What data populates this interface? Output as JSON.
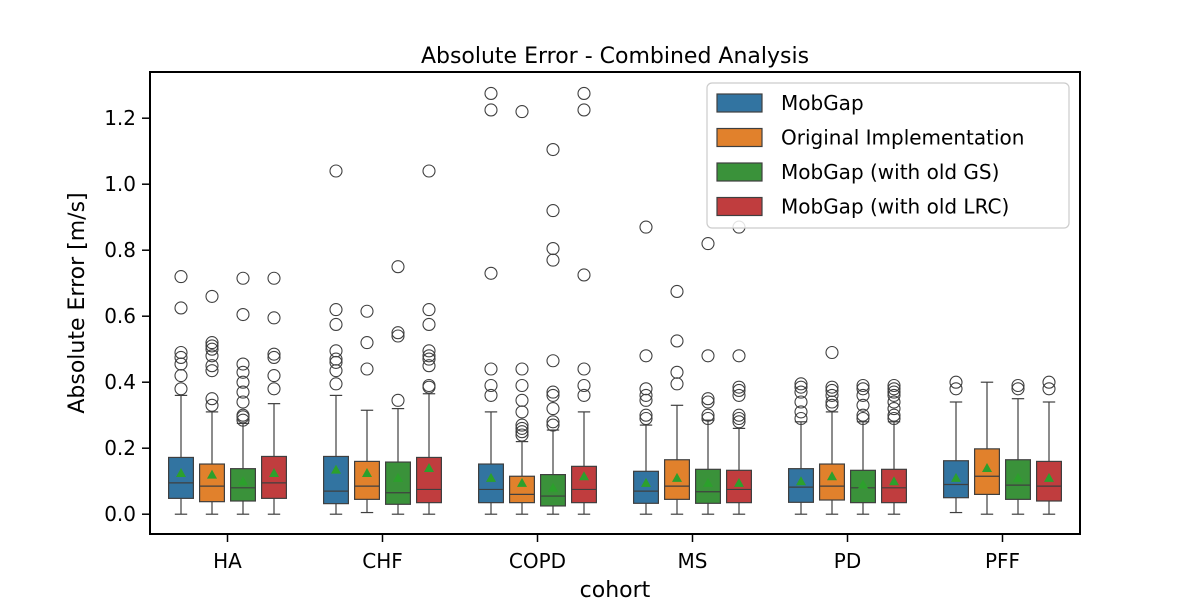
{
  "chart_data": {
    "type": "boxplot",
    "title": "Absolute Error - Combined Analysis",
    "xlabel": "cohort",
    "ylabel": "Absolute Error [m/s]",
    "ylim": [
      -0.06,
      1.34
    ],
    "yticks": [
      0.0,
      0.2,
      0.4,
      0.6,
      0.8,
      1.0,
      1.2
    ],
    "ytick_labels": [
      "0.0",
      "0.2",
      "0.4",
      "0.6",
      "0.8",
      "1.0",
      "1.2"
    ],
    "categories": [
      "HA",
      "CHF",
      "COPD",
      "MS",
      "PD",
      "PFF"
    ],
    "legend_position": "top-right",
    "grid": false,
    "mean_marker_color": "#2ca02c",
    "series": [
      {
        "name": "MobGap",
        "color": "#3274a1",
        "boxes": [
          {
            "whislo": 0.0,
            "q1": 0.048,
            "med": 0.095,
            "q3": 0.172,
            "whishi": 0.36,
            "mean": 0.125,
            "fliers": [
              0.38,
              0.42,
              0.455,
              0.475,
              0.49,
              0.625,
              0.72
            ]
          },
          {
            "whislo": 0.0,
            "q1": 0.032,
            "med": 0.07,
            "q3": 0.175,
            "whishi": 0.36,
            "mean": 0.135,
            "fliers": [
              0.395,
              0.435,
              0.46,
              0.47,
              0.495,
              0.575,
              0.62,
              1.04
            ]
          },
          {
            "whislo": 0.0,
            "q1": 0.035,
            "med": 0.075,
            "q3": 0.152,
            "whishi": 0.31,
            "mean": 0.11,
            "fliers": [
              0.36,
              0.39,
              0.44,
              0.73,
              1.225,
              1.275
            ]
          },
          {
            "whislo": 0.0,
            "q1": 0.033,
            "med": 0.07,
            "q3": 0.13,
            "whishi": 0.27,
            "mean": 0.095,
            "fliers": [
              0.29,
              0.3,
              0.345,
              0.36,
              0.38,
              0.48,
              0.87
            ]
          },
          {
            "whislo": 0.0,
            "q1": 0.036,
            "med": 0.082,
            "q3": 0.138,
            "whishi": 0.28,
            "mean": 0.1,
            "fliers": [
              0.29,
              0.31,
              0.34,
              0.37,
              0.385,
              0.395
            ]
          },
          {
            "whislo": 0.005,
            "q1": 0.05,
            "med": 0.09,
            "q3": 0.162,
            "whishi": 0.34,
            "mean": 0.11,
            "fliers": [
              0.38,
              0.4
            ]
          }
        ]
      },
      {
        "name": "Original Implementation",
        "color": "#e1812c",
        "boxes": [
          {
            "whislo": 0.0,
            "q1": 0.038,
            "med": 0.085,
            "q3": 0.152,
            "whishi": 0.31,
            "mean": 0.12,
            "fliers": [
              0.33,
              0.35,
              0.435,
              0.45,
              0.48,
              0.5,
              0.51,
              0.52,
              0.66
            ]
          },
          {
            "whislo": 0.005,
            "q1": 0.045,
            "med": 0.085,
            "q3": 0.16,
            "whishi": 0.315,
            "mean": 0.125,
            "fliers": [
              0.44,
              0.52,
              0.615
            ]
          },
          {
            "whislo": 0.0,
            "q1": 0.035,
            "med": 0.06,
            "q3": 0.115,
            "whishi": 0.22,
            "mean": 0.095,
            "fliers": [
              0.24,
              0.25,
              0.26,
              0.27,
              0.31,
              0.345,
              0.39,
              0.44,
              1.22
            ]
          },
          {
            "whislo": 0.0,
            "q1": 0.045,
            "med": 0.085,
            "q3": 0.165,
            "whishi": 0.33,
            "mean": 0.11,
            "fliers": [
              0.395,
              0.43,
              0.525,
              0.675
            ]
          },
          {
            "whislo": 0.0,
            "q1": 0.043,
            "med": 0.085,
            "q3": 0.152,
            "whishi": 0.31,
            "mean": 0.115,
            "fliers": [
              0.33,
              0.34,
              0.36,
              0.375,
              0.385,
              0.49
            ]
          },
          {
            "whislo": 0.0,
            "q1": 0.06,
            "med": 0.115,
            "q3": 0.198,
            "whishi": 0.4,
            "mean": 0.14,
            "fliers": []
          }
        ]
      },
      {
        "name": "MobGap (with old GS)",
        "color": "#3a923a",
        "boxes": [
          {
            "whislo": 0.0,
            "q1": 0.04,
            "med": 0.08,
            "q3": 0.138,
            "whishi": 0.275,
            "mean": 0.1,
            "fliers": [
              0.285,
              0.295,
              0.3,
              0.34,
              0.37,
              0.4,
              0.43,
              0.455,
              0.605,
              0.715
            ]
          },
          {
            "whislo": 0.0,
            "q1": 0.03,
            "med": 0.065,
            "q3": 0.158,
            "whishi": 0.32,
            "mean": 0.11,
            "fliers": [
              0.345,
              0.54,
              0.55,
              0.75
            ]
          },
          {
            "whislo": 0.0,
            "q1": 0.025,
            "med": 0.055,
            "q3": 0.12,
            "whishi": 0.255,
            "mean": 0.08,
            "fliers": [
              0.27,
              0.28,
              0.32,
              0.36,
              0.37,
              0.465,
              0.77,
              0.805,
              0.92,
              1.105
            ]
          },
          {
            "whislo": 0.0,
            "q1": 0.033,
            "med": 0.068,
            "q3": 0.136,
            "whishi": 0.285,
            "mean": 0.095,
            "fliers": [
              0.29,
              0.3,
              0.34,
              0.35,
              0.48,
              0.82
            ]
          },
          {
            "whislo": 0.0,
            "q1": 0.035,
            "med": 0.08,
            "q3": 0.133,
            "whishi": 0.28,
            "mean": 0.09,
            "fliers": [
              0.29,
              0.3,
              0.33,
              0.36,
              0.38,
              0.39
            ]
          },
          {
            "whislo": 0.0,
            "q1": 0.045,
            "med": 0.088,
            "q3": 0.165,
            "whishi": 0.35,
            "mean": 0.11,
            "fliers": [
              0.38,
              0.39
            ]
          }
        ]
      },
      {
        "name": "MobGap (with old LRC)",
        "color": "#c03d3e",
        "boxes": [
          {
            "whislo": 0.0,
            "q1": 0.048,
            "med": 0.095,
            "q3": 0.175,
            "whishi": 0.335,
            "mean": 0.125,
            "fliers": [
              0.38,
              0.42,
              0.475,
              0.485,
              0.595,
              0.715
            ]
          },
          {
            "whislo": 0.0,
            "q1": 0.035,
            "med": 0.075,
            "q3": 0.172,
            "whishi": 0.365,
            "mean": 0.14,
            "fliers": [
              0.385,
              0.39,
              0.45,
              0.47,
              0.48,
              0.495,
              0.575,
              0.62,
              1.04
            ]
          },
          {
            "whislo": 0.0,
            "q1": 0.035,
            "med": 0.075,
            "q3": 0.145,
            "whishi": 0.31,
            "mean": 0.115,
            "fliers": [
              0.36,
              0.39,
              0.44,
              0.725,
              1.225,
              1.275
            ]
          },
          {
            "whislo": 0.0,
            "q1": 0.035,
            "med": 0.075,
            "q3": 0.133,
            "whishi": 0.26,
            "mean": 0.095,
            "fliers": [
              0.28,
              0.29,
              0.3,
              0.36,
              0.375,
              0.385,
              0.48,
              0.87
            ]
          },
          {
            "whislo": 0.0,
            "q1": 0.035,
            "med": 0.08,
            "q3": 0.136,
            "whishi": 0.28,
            "mean": 0.1,
            "fliers": [
              0.29,
              0.3,
              0.32,
              0.34,
              0.36,
              0.37,
              0.38,
              0.39
            ]
          },
          {
            "whislo": 0.0,
            "q1": 0.04,
            "med": 0.085,
            "q3": 0.16,
            "whishi": 0.34,
            "mean": 0.11,
            "fliers": [
              0.38,
              0.4
            ]
          }
        ]
      }
    ]
  }
}
